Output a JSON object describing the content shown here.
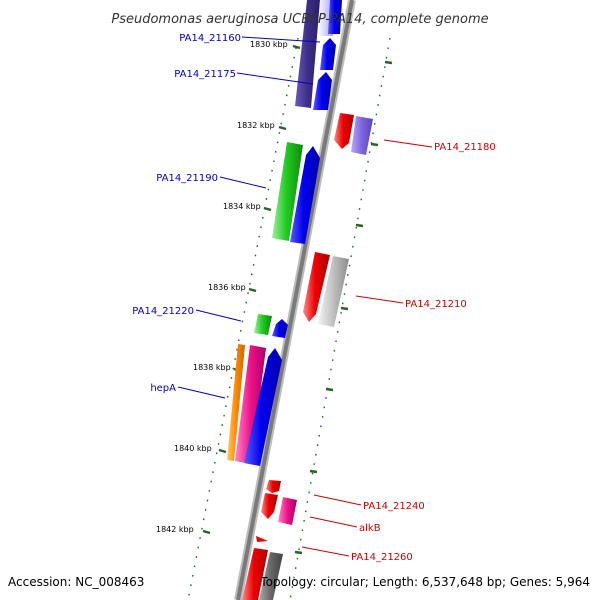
{
  "title": "Pseudomonas aeruginosa UCBPP-PA14, complete genome",
  "footer": {
    "accession": "Accession: NC_008463",
    "summary": "Topology: circular; Length: 6,537,648 bp; Genes: 5,964"
  },
  "colors": {
    "label_left": "#0000cc",
    "label_right": "#cc0000",
    "tick": "#226622",
    "backbone": "#888888"
  },
  "scale_marks": [
    {
      "text": "1830 kbp",
      "value": 1830
    },
    {
      "text": "1832 kbp",
      "value": 1832
    },
    {
      "text": "1834 kbp",
      "value": 1834
    },
    {
      "text": "1836 kbp",
      "value": 1836
    },
    {
      "text": "1838 kbp",
      "value": 1838
    },
    {
      "text": "1840 kbp",
      "value": 1840
    },
    {
      "text": "1842 kbp",
      "value": 1842
    }
  ],
  "gene_labels_left": [
    {
      "text": "PA14_21160"
    },
    {
      "text": "PA14_21175"
    },
    {
      "text": "PA14_21190"
    },
    {
      "text": "PA14_21220"
    },
    {
      "text": "hepA"
    }
  ],
  "gene_labels_right": [
    {
      "text": "PA14_21180"
    },
    {
      "text": "PA14_21210"
    },
    {
      "text": "PA14_21240"
    },
    {
      "text": "alkB"
    },
    {
      "text": "PA14_21260"
    }
  ]
}
